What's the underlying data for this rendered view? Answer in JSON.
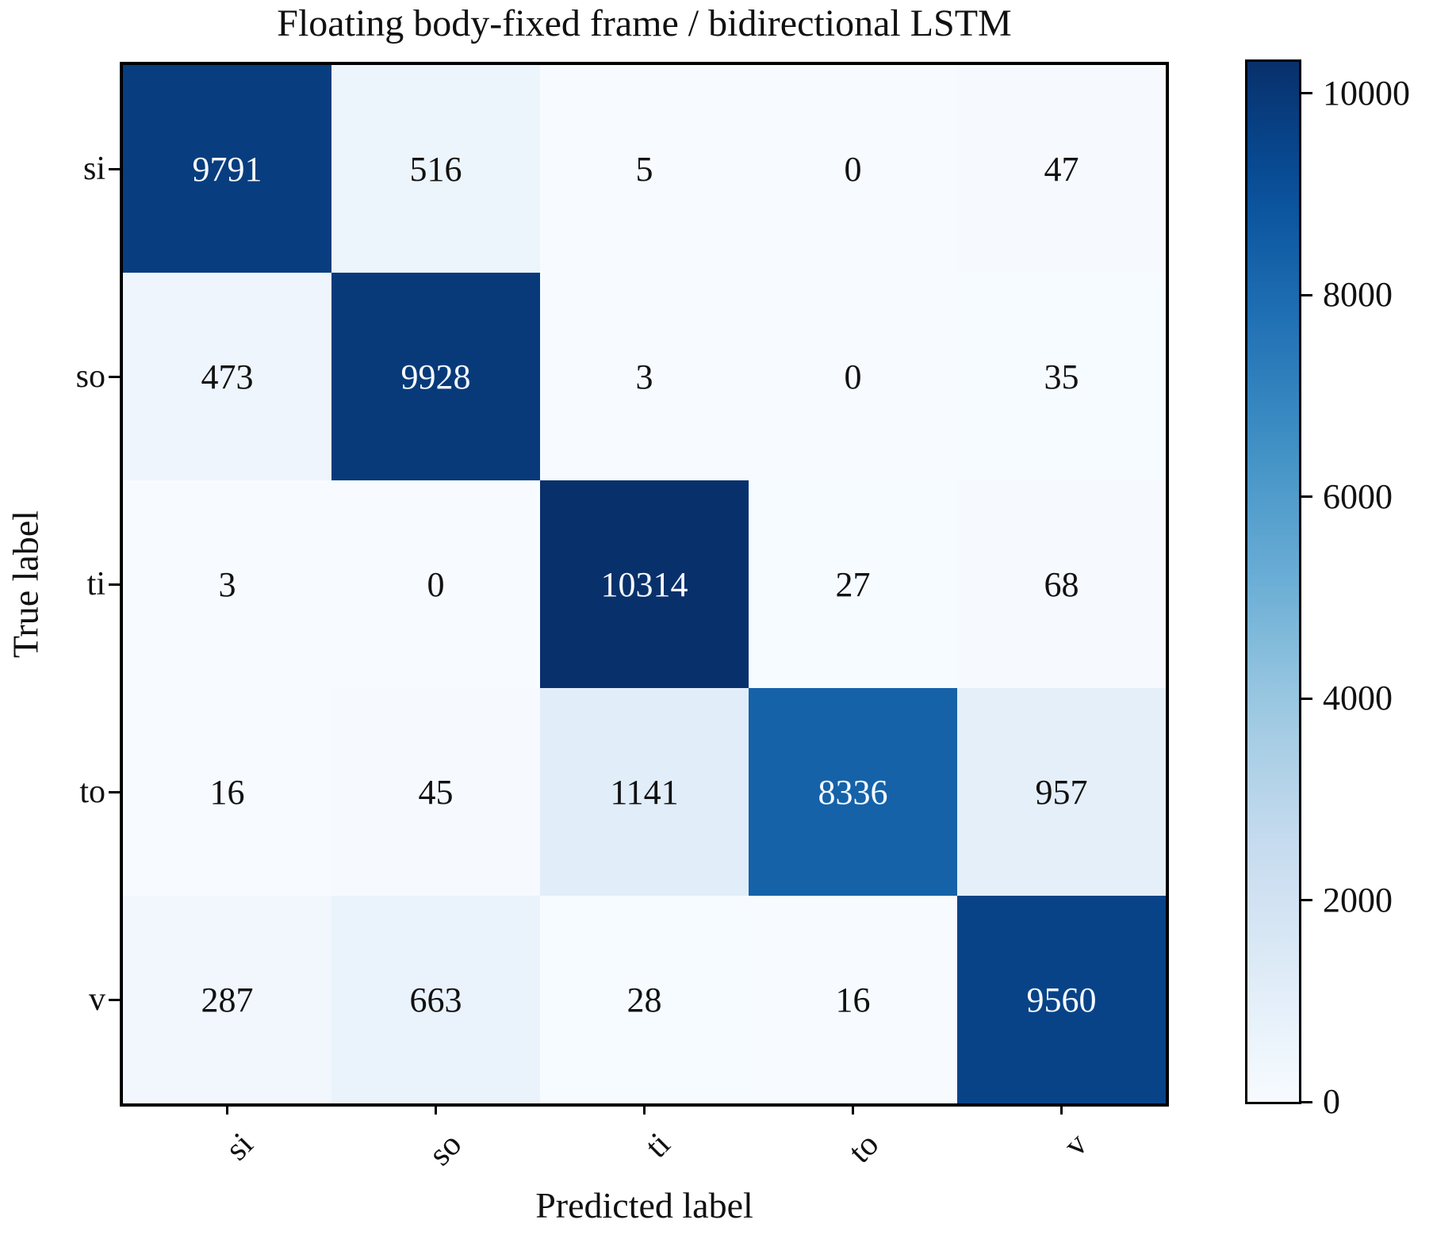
{
  "chart_data": {
    "type": "heatmap",
    "subtype": "confusion-matrix",
    "title": "Floating body-fixed frame / bidirectional LSTM",
    "xlabel": "Predicted label",
    "ylabel": "True label",
    "categories": [
      "si",
      "so",
      "ti",
      "to",
      "v"
    ],
    "matrix": [
      [
        9791,
        516,
        5,
        0,
        47
      ],
      [
        473,
        9928,
        3,
        0,
        35
      ],
      [
        3,
        0,
        10314,
        27,
        68
      ],
      [
        16,
        45,
        1141,
        8336,
        957
      ],
      [
        287,
        663,
        28,
        16,
        9560
      ]
    ],
    "vmin": 0,
    "vmax": 10314,
    "colormap": "Blues",
    "colorbar_ticks": [
      0,
      2000,
      4000,
      6000,
      8000,
      10000
    ],
    "colorbar_position": "right",
    "legend": "none",
    "grid": false,
    "colors": {
      "cmap_low": "#f7fbff",
      "cmap_high": "#08306b",
      "cell_text_dark": "#111111",
      "cell_text_light": "#f7fbff",
      "frame": "#000000"
    }
  }
}
